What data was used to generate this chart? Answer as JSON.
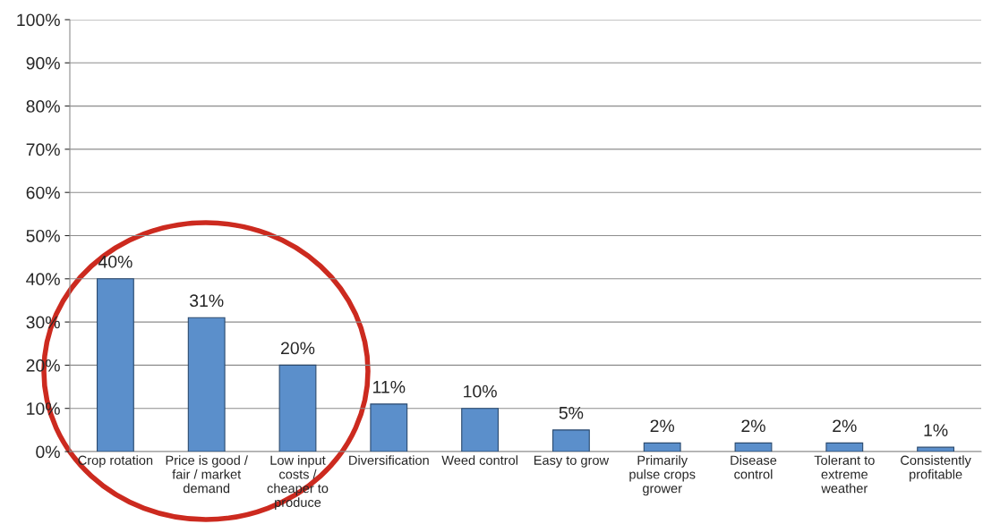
{
  "chart_data": {
    "type": "bar",
    "categories": [
      "Crop rotation",
      "Price is good /\nfair / market\ndemand",
      "Low input\ncosts /\ncheaper to\nproduce",
      "Diversification",
      "Weed control",
      "Easy to grow",
      "Primarily\npulse crops\ngrower",
      "Disease\ncontrol",
      "Tolerant to\nextreme\nweather",
      "Consistently\nprofitable"
    ],
    "values": [
      40,
      31,
      20,
      11,
      10,
      5,
      2,
      2,
      2,
      1
    ],
    "value_labels": [
      "40%",
      "31%",
      "20%",
      "11%",
      "10%",
      "5%",
      "2%",
      "2%",
      "2%",
      "1%"
    ],
    "color": "#5b8fcb",
    "ylim": [
      0,
      100
    ],
    "yticks": [
      {
        "value": 0,
        "label": "0%"
      },
      {
        "value": 10,
        "label": "10%"
      },
      {
        "value": 20,
        "label": "20%"
      },
      {
        "value": 30,
        "label": "30%"
      },
      {
        "value": 40,
        "label": "40%"
      },
      {
        "value": 50,
        "label": "50%"
      },
      {
        "value": 60,
        "label": "60%"
      },
      {
        "value": 70,
        "label": "70%"
      },
      {
        "value": 80,
        "label": "80%"
      },
      {
        "value": 90,
        "label": "90%"
      },
      {
        "value": 100,
        "label": "100%"
      }
    ],
    "grid": "y",
    "legend": false
  }
}
